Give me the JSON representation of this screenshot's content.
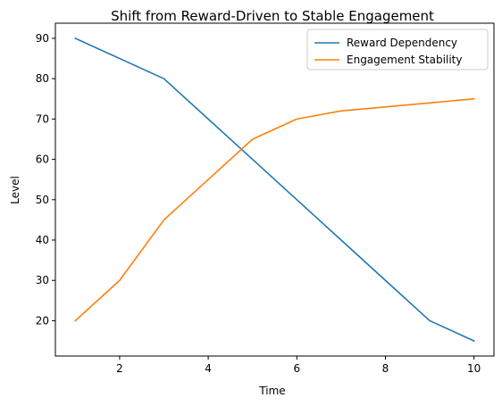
{
  "chart_data": {
    "type": "line",
    "title": "Shift from Reward-Driven to Stable Engagement",
    "xlabel": "Time",
    "ylabel": "Level",
    "x": [
      1,
      2,
      3,
      4,
      5,
      6,
      7,
      8,
      9,
      10
    ],
    "xlim": [
      0.55,
      10.45
    ],
    "ylim": [
      11.25,
      93.75
    ],
    "xticks": [
      2,
      4,
      6,
      8,
      10
    ],
    "yticks": [
      20,
      30,
      40,
      50,
      60,
      70,
      80,
      90
    ],
    "grid": false,
    "legend_position": "top-right",
    "series": [
      {
        "name": "Reward Dependency",
        "color": "#1f77b4",
        "values": [
          90,
          85,
          80,
          70,
          60,
          50,
          40,
          30,
          20,
          15
        ]
      },
      {
        "name": "Engagement Stability",
        "color": "#ff7f0e",
        "values": [
          20,
          30,
          45,
          55,
          65,
          70,
          72,
          73,
          74,
          75
        ]
      }
    ]
  }
}
